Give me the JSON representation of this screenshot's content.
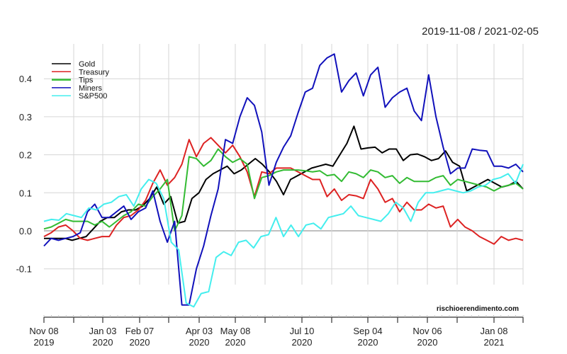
{
  "header": {
    "date_range": "2019-11-08 / 2021-02-05"
  },
  "watermark": "rischioerendimento.com",
  "chart_data": {
    "type": "line",
    "title": "2019-11-08 / 2021-02-05",
    "xlabel": "",
    "ylabel": "",
    "ylim": [
      -0.2,
      0.47
    ],
    "grid": true,
    "legend_position": "top-left",
    "y_ticks": [
      "-0.1",
      "0.0",
      "0.1",
      "0.2",
      "0.3",
      "0.4"
    ],
    "x_ticks": [
      {
        "label": "Nov 08",
        "year": "2019"
      },
      {
        "label": "Jan 03",
        "year": "2020"
      },
      {
        "label": "Feb 07",
        "year": "2020"
      },
      {
        "label": "Apr 03",
        "year": "2020"
      },
      {
        "label": "May 08",
        "year": "2020"
      },
      {
        "label": "Jul 10",
        "year": "2020"
      },
      {
        "label": "Sep 04",
        "year": "2020"
      },
      {
        "label": "Nov 06",
        "year": "2020"
      },
      {
        "label": "Jan 08",
        "year": "2021"
      }
    ],
    "series": [
      {
        "name": "Gold",
        "color": "#000000",
        "values": [
          -0.02,
          -0.02,
          -0.02,
          -0.02,
          -0.025,
          -0.02,
          -0.015,
          0.005,
          0.025,
          0.035,
          0.035,
          0.05,
          0.055,
          0.055,
          0.065,
          0.085,
          0.115,
          0.07,
          0.09,
          0.02,
          0.025,
          0.085,
          0.1,
          0.135,
          0.15,
          0.16,
          0.17,
          0.15,
          0.16,
          0.175,
          0.19,
          0.175,
          0.155,
          0.13,
          0.095,
          0.135,
          0.145,
          0.155,
          0.165,
          0.17,
          0.175,
          0.17,
          0.2,
          0.23,
          0.275,
          0.215,
          0.218,
          0.22,
          0.205,
          0.215,
          0.215,
          0.185,
          0.2,
          0.202,
          0.195,
          0.185,
          0.19,
          0.21,
          0.18,
          0.17,
          0.105,
          0.115,
          0.125,
          0.135,
          0.125,
          0.115,
          0.12,
          0.13,
          0.11
        ]
      },
      {
        "name": "Treasury",
        "color": "#dd2222",
        "values": [
          -0.015,
          -0.005,
          0.01,
          0.015,
          0.0,
          -0.02,
          -0.025,
          -0.02,
          -0.015,
          -0.015,
          0.015,
          0.035,
          0.04,
          0.055,
          0.08,
          0.125,
          0.16,
          0.12,
          0.14,
          0.175,
          0.24,
          0.195,
          0.23,
          0.245,
          0.225,
          0.205,
          0.225,
          0.195,
          0.155,
          0.09,
          0.155,
          0.15,
          0.165,
          0.165,
          0.165,
          0.155,
          0.145,
          0.135,
          0.135,
          0.09,
          0.11,
          0.08,
          0.095,
          0.092,
          0.085,
          0.135,
          0.11,
          0.075,
          0.085,
          0.05,
          0.075,
          0.055,
          0.055,
          0.07,
          0.06,
          0.065,
          0.01,
          0.03,
          0.01,
          0.0,
          -0.015,
          -0.025,
          -0.035,
          -0.015,
          -0.025,
          -0.02,
          -0.025
        ]
      },
      {
        "name": "Tips",
        "color": "#33bb33",
        "values": [
          0.005,
          0.01,
          0.02,
          0.03,
          0.025,
          0.025,
          0.025,
          0.015,
          0.025,
          0.01,
          0.025,
          0.04,
          0.05,
          0.07,
          0.065,
          0.09,
          0.11,
          0.135,
          0.0,
          0.04,
          0.195,
          0.19,
          0.17,
          0.185,
          0.215,
          0.195,
          0.18,
          0.19,
          0.175,
          0.085,
          0.14,
          0.145,
          0.155,
          0.16,
          0.16,
          0.16,
          0.158,
          0.155,
          0.158,
          0.145,
          0.148,
          0.13,
          0.155,
          0.15,
          0.14,
          0.16,
          0.155,
          0.14,
          0.145,
          0.125,
          0.14,
          0.13,
          0.13,
          0.13,
          0.14,
          0.145,
          0.12,
          0.135,
          0.13,
          0.125,
          0.12,
          0.115,
          0.105,
          0.115,
          0.12,
          0.125,
          0.11
        ]
      },
      {
        "name": "Miners",
        "color": "#1111bb",
        "values": [
          -0.04,
          -0.02,
          -0.025,
          -0.02,
          -0.015,
          -0.005,
          0.05,
          0.07,
          0.035,
          0.035,
          0.05,
          0.065,
          0.03,
          0.05,
          0.06,
          0.105,
          0.025,
          -0.03,
          0.025,
          -0.195,
          -0.195,
          -0.1,
          -0.04,
          0.04,
          0.11,
          0.24,
          0.23,
          0.3,
          0.35,
          0.33,
          0.26,
          0.12,
          0.18,
          0.22,
          0.25,
          0.31,
          0.365,
          0.375,
          0.435,
          0.455,
          0.465,
          0.365,
          0.395,
          0.415,
          0.355,
          0.41,
          0.43,
          0.325,
          0.35,
          0.365,
          0.375,
          0.315,
          0.29,
          0.41,
          0.3,
          0.22,
          0.15,
          0.165,
          0.165,
          0.215,
          0.212,
          0.21,
          0.17,
          0.17,
          0.165,
          0.175,
          0.155
        ]
      },
      {
        "name": "S&P500",
        "color": "#44eeee",
        "values": [
          0.025,
          0.03,
          0.028,
          0.045,
          0.04,
          0.035,
          0.06,
          0.055,
          0.07,
          0.075,
          0.09,
          0.095,
          0.065,
          0.11,
          0.135,
          0.125,
          0.085,
          -0.03,
          -0.05,
          -0.19,
          -0.2,
          -0.165,
          -0.16,
          -0.07,
          -0.055,
          -0.065,
          -0.03,
          -0.025,
          -0.045,
          -0.015,
          -0.01,
          0.035,
          -0.015,
          0.015,
          -0.015,
          0.015,
          0.02,
          0.005,
          0.035,
          0.04,
          0.045,
          0.065,
          0.04,
          0.035,
          0.03,
          0.025,
          0.045,
          0.075,
          0.06,
          0.025,
          0.075,
          0.1,
          0.1,
          0.105,
          0.11,
          0.105,
          0.1,
          0.105,
          0.115,
          0.12,
          0.135,
          0.14,
          0.15,
          0.125,
          0.175
        ]
      }
    ]
  }
}
